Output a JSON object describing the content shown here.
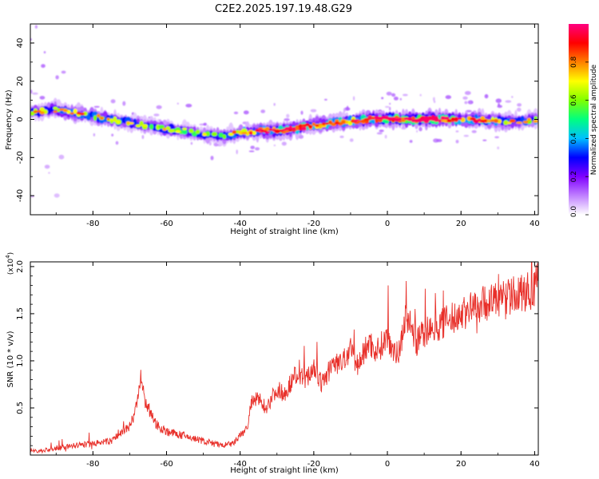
{
  "title": "C2E2.2025.197.19.48.G29",
  "chart_data": [
    {
      "type": "heatmap",
      "xlabel": "Height of straight line (km)",
      "ylabel": "Frequency (Hz)",
      "xlim": [
        -97,
        41
      ],
      "ylim": [
        -50,
        50
      ],
      "x_ticks": [
        -80,
        -60,
        -40,
        -20,
        0,
        20,
        40
      ],
      "y_ticks": [
        -40,
        -20,
        0,
        20,
        40
      ],
      "colorbar": {
        "label": "Normalized spectral amplitude",
        "range": [
          0,
          1
        ],
        "ticks": [
          "0.0",
          "0.2",
          "0.4",
          "0.6",
          "0.8"
        ],
        "colors": [
          "#ffffff",
          "#c080ff",
          "#8000ff",
          "#0000ff",
          "#00c0ff",
          "#00ff80",
          "#80ff00",
          "#ffff00",
          "#ff8000",
          "#ff0000",
          "#ff0080"
        ]
      },
      "ridge": {
        "x": [
          -96,
          -90,
          -84,
          -78,
          -72,
          -66,
          -60,
          -55,
          -50,
          -45,
          -40,
          -35,
          -30,
          -25,
          -20,
          -15,
          -10,
          -5,
          0,
          5,
          10,
          15,
          20,
          25,
          30,
          35,
          41
        ],
        "frequency": [
          4,
          5,
          3,
          1,
          -1,
          -3,
          -5,
          -6,
          -8,
          -9,
          -7,
          -6,
          -6,
          -5,
          -3,
          -2,
          -1,
          0,
          0,
          0,
          0,
          0,
          0,
          0,
          -1,
          -1,
          0
        ],
        "amplitude": [
          0.55,
          0.6,
          0.6,
          0.55,
          0.55,
          0.5,
          0.5,
          0.45,
          0.5,
          0.5,
          0.6,
          0.7,
          0.75,
          0.85,
          0.65,
          0.7,
          0.7,
          0.75,
          0.85,
          0.9,
          0.9,
          0.85,
          0.75,
          0.7,
          0.6,
          0.55,
          0.6
        ]
      }
    },
    {
      "type": "line",
      "xlabel": "Height of straight line (km)",
      "ylabel": "SNR (10 * v/v)",
      "y_multiplier": "(x10",
      "y_multiplier_exp": "4",
      "xlim": [
        -97,
        41
      ],
      "ylim": [
        0,
        2.05
      ],
      "x_ticks": [
        -80,
        -60,
        -40,
        -20,
        0,
        20,
        40
      ],
      "y_ticks": [
        0.5,
        1.0,
        1.5,
        2.0
      ],
      "color": "#e8302a",
      "x": [
        -97,
        -95,
        -90,
        -85,
        -80,
        -75,
        -72,
        -70,
        -68,
        -67,
        -66,
        -64,
        -62,
        -60,
        -55,
        -50,
        -45,
        -42,
        -40,
        -38,
        -37,
        -35,
        -33,
        -30,
        -28,
        -25,
        -22,
        -20,
        -18,
        -15,
        -12,
        -10,
        -8,
        -5,
        -3,
        0,
        3,
        5,
        8,
        10,
        12,
        15,
        18,
        20,
        25,
        30,
        35,
        40,
        41
      ],
      "snr": [
        0.05,
        0.04,
        0.07,
        0.1,
        0.12,
        0.15,
        0.25,
        0.3,
        0.55,
        0.8,
        0.6,
        0.4,
        0.3,
        0.25,
        0.2,
        0.15,
        0.1,
        0.12,
        0.2,
        0.3,
        0.55,
        0.6,
        0.5,
        0.7,
        0.65,
        0.85,
        0.8,
        0.95,
        0.75,
        0.95,
        1.0,
        1.1,
        0.95,
        1.2,
        1.1,
        1.25,
        1.05,
        1.5,
        1.2,
        1.3,
        1.35,
        1.4,
        1.45,
        1.5,
        1.6,
        1.65,
        1.7,
        1.75,
        1.9
      ]
    }
  ]
}
